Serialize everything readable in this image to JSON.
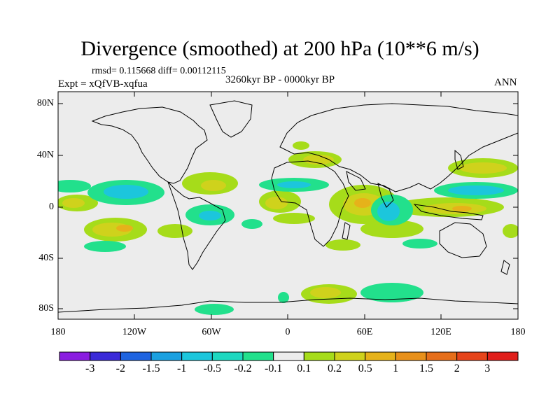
{
  "title": "Divergence (smoothed) at 200 hPa (10**6 m/s)",
  "stats_text": "rmsd= 0.115668  diff= 0.00112115",
  "period": "3260kyr BP - 0000kyr BP",
  "experiment": "Expt = xQfVB-xqfua",
  "season": "ANN",
  "lat_ticks": [
    "80N",
    "40N",
    "0",
    "40S",
    "80S"
  ],
  "lon_ticks": [
    "180",
    "120W",
    "60W",
    "0",
    "60E",
    "120E",
    "180"
  ],
  "colorbar": {
    "labels": [
      "-3",
      "-2",
      "-1.5",
      "-1",
      "-0.5",
      "-0.2",
      "-0.1",
      "0.1",
      "0.2",
      "0.5",
      "1",
      "1.5",
      "2",
      "3"
    ],
    "colors": [
      "#8a1de0",
      "#3a2ad8",
      "#1f64e0",
      "#1aa0e0",
      "#1cc6dc",
      "#1ed8c0",
      "#22e08c",
      "#ececec",
      "#a6dc1a",
      "#cfd21c",
      "#e6b21a",
      "#e8901a",
      "#e66e1a",
      "#e6441a",
      "#e01e1a"
    ]
  },
  "colors": {
    "background": "#ececec",
    "coast": "#000000"
  }
}
